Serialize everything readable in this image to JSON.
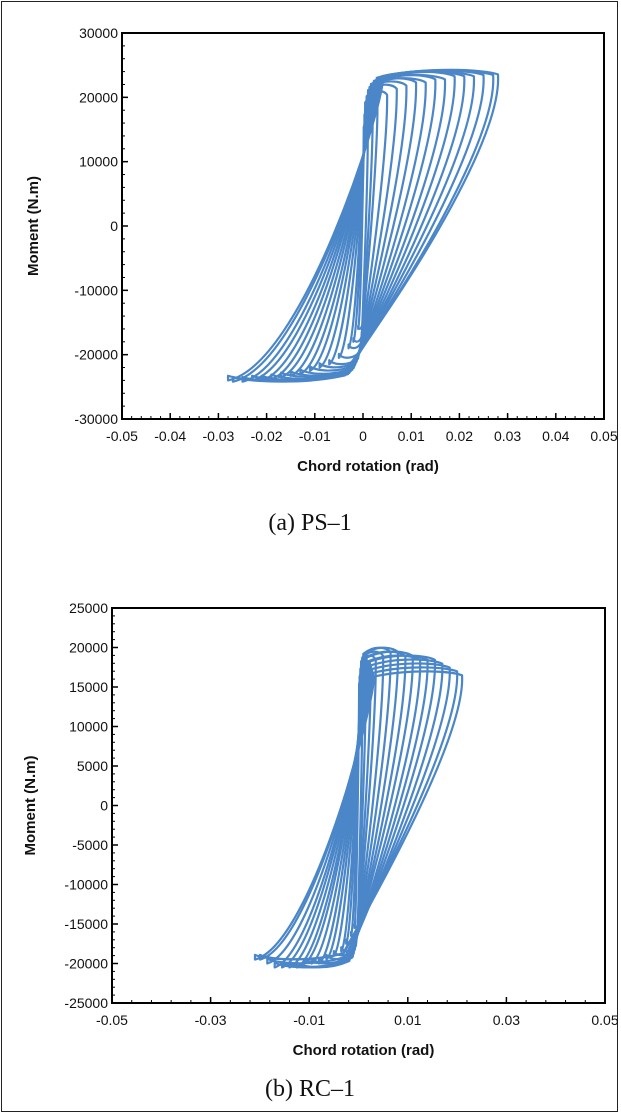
{
  "chart_data": [
    {
      "type": "line",
      "caption": "(a) PS–1",
      "xlabel": "Chord rotation (rad)",
      "ylabel": "Moment (N.m)",
      "xlim": [
        -0.05,
        0.05
      ],
      "ylim": [
        -30000,
        30000
      ],
      "x_ticks": [
        -0.05,
        -0.04,
        -0.03,
        -0.02,
        -0.01,
        0,
        0.01,
        0.02,
        0.03,
        0.04,
        0.05
      ],
      "x_tick_labels": [
        "-0.05",
        "-0.04",
        "-0.03",
        "-0.02",
        "-0.01",
        "0",
        "0.01",
        "0.02",
        "0.03",
        "0.04",
        "0.05"
      ],
      "y_ticks": [
        30000,
        20000,
        10000,
        0,
        -10000,
        -20000,
        -30000
      ],
      "y_tick_labels": [
        "30000",
        "20000",
        "10000",
        "0",
        "-10000",
        "-20000",
        "-30000"
      ],
      "series_color": "#4a86c8",
      "hysteresis_loops": [
        {
          "amp": 0.001,
          "mmax": 16000,
          "mmin": -16000
        },
        {
          "amp": 0.002,
          "mmax": 18000,
          "mmin": -18000
        },
        {
          "amp": 0.003,
          "mmax": 20000,
          "mmin": -19000
        },
        {
          "amp": 0.005,
          "mmax": 21000,
          "mmin": -20500
        },
        {
          "amp": 0.007,
          "mmax": 22000,
          "mmin": -21500
        },
        {
          "amp": 0.009,
          "mmax": 22500,
          "mmin": -22000
        },
        {
          "amp": 0.011,
          "mmax": 23000,
          "mmin": -22500
        },
        {
          "amp": 0.013,
          "mmax": 23000,
          "mmin": -23000
        },
        {
          "amp": 0.015,
          "mmax": 23500,
          "mmin": -23300
        },
        {
          "amp": 0.017,
          "mmax": 23500,
          "mmin": -23500
        },
        {
          "amp": 0.019,
          "mmax": 24000,
          "mmin": -23800
        },
        {
          "amp": 0.021,
          "mmax": 24000,
          "mmin": -24000
        },
        {
          "amp": 0.023,
          "mmax": 24000,
          "mmin": -24000
        },
        {
          "amp": 0.025,
          "mmax": 24200,
          "mmin": -24200
        },
        {
          "amp": 0.027,
          "mmax": 24200,
          "mmin": -24200
        },
        {
          "amp": 0.028,
          "mmax": 24300,
          "mmin": -24000
        }
      ]
    },
    {
      "type": "line",
      "caption": "(b) RC–1",
      "xlabel": "Chord rotation (rad)",
      "ylabel": "Moment (N.m)",
      "xlim": [
        -0.05,
        0.05
      ],
      "ylim": [
        -25000,
        25000
      ],
      "x_ticks": [
        -0.05,
        -0.03,
        -0.01,
        0.01,
        0.03,
        0.05
      ],
      "x_tick_labels": [
        "-0.05",
        "-0.03",
        "-0.01",
        "0.01",
        "0.03",
        "0.05"
      ],
      "y_ticks": [
        25000,
        20000,
        15000,
        10000,
        5000,
        0,
        -5000,
        -10000,
        -15000,
        -20000,
        -25000
      ],
      "y_tick_labels": [
        "25000",
        "20000",
        "15000",
        "10000",
        "5000",
        "0",
        "-5000",
        "-10000",
        "-15000",
        "-20000",
        "-25000"
      ],
      "series_color": "#4a86c8",
      "hysteresis_loops": [
        {
          "amp": 0.0008,
          "mmax": 16000,
          "mmin": -15500
        },
        {
          "amp": 0.0015,
          "mmax": 17000,
          "mmin": -16500
        },
        {
          "amp": 0.0025,
          "mmax": 18000,
          "mmin": -17500
        },
        {
          "amp": 0.0035,
          "mmax": 19000,
          "mmin": -18500
        },
        {
          "amp": 0.005,
          "mmax": 19500,
          "mmin": -19000
        },
        {
          "amp": 0.0065,
          "mmax": 20000,
          "mmin": -19500
        },
        {
          "amp": 0.008,
          "mmax": 20000,
          "mmin": -20000
        },
        {
          "amp": 0.0095,
          "mmax": 19500,
          "mmin": -20000
        },
        {
          "amp": 0.011,
          "mmax": 19500,
          "mmin": -20000
        },
        {
          "amp": 0.0125,
          "mmax": 19000,
          "mmin": -20500
        },
        {
          "amp": 0.014,
          "mmax": 19000,
          "mmin": -20500
        },
        {
          "amp": 0.0155,
          "mmax": 19000,
          "mmin": -20500
        },
        {
          "amp": 0.017,
          "mmax": 18500,
          "mmin": -20500
        },
        {
          "amp": 0.0185,
          "mmax": 18000,
          "mmin": -20000
        },
        {
          "amp": 0.02,
          "mmax": 17500,
          "mmin": -19500
        },
        {
          "amp": 0.021,
          "mmax": 17000,
          "mmin": -19500
        }
      ]
    }
  ]
}
